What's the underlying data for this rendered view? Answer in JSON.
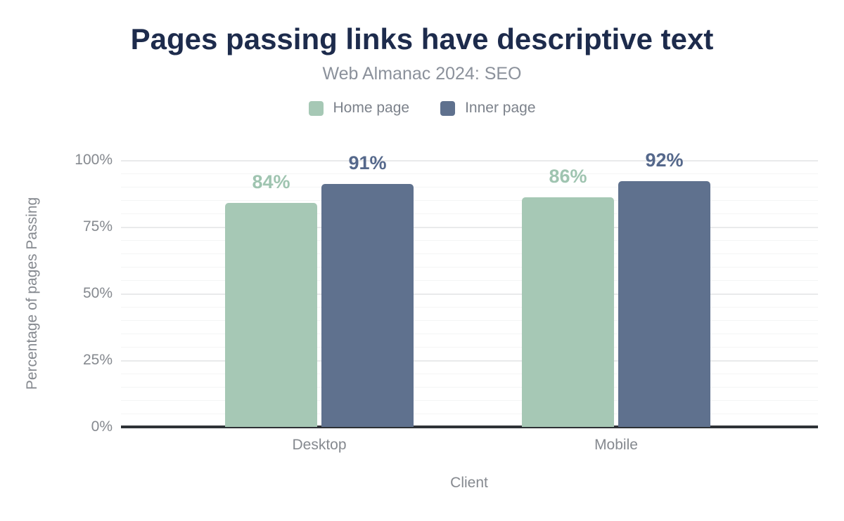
{
  "chart_data": {
    "type": "bar",
    "title": "Pages passing links have descriptive text",
    "subtitle": "Web Almanac 2024: SEO",
    "categories": [
      "Desktop",
      "Mobile"
    ],
    "series": [
      {
        "name": "Home page",
        "color": "#a6c8b5",
        "label_color": "#9fc4b0",
        "values": [
          84,
          86
        ]
      },
      {
        "name": "Inner page",
        "color": "#5f718e",
        "label_color": "#55688b",
        "values": [
          91,
          92
        ]
      }
    ],
    "xlabel": "Client",
    "ylabel": "Percentage of pages Passing",
    "ylim": [
      0,
      100
    ],
    "yticks": [
      0,
      25,
      50,
      75,
      100
    ],
    "ytick_suffix": "%",
    "value_suffix": "%",
    "minor_grid_step": 5,
    "grid": true,
    "legend_position": "top"
  },
  "colors": {
    "title": "#1d2b4c",
    "subtitle": "#8b919b",
    "legend_text": "#7c828b",
    "axis_text": "#85898f",
    "axis_line": "#2e3236",
    "major_grid": "#e9eaeb",
    "minor_grid": "#f4f5f5",
    "background": "#ffffff"
  }
}
